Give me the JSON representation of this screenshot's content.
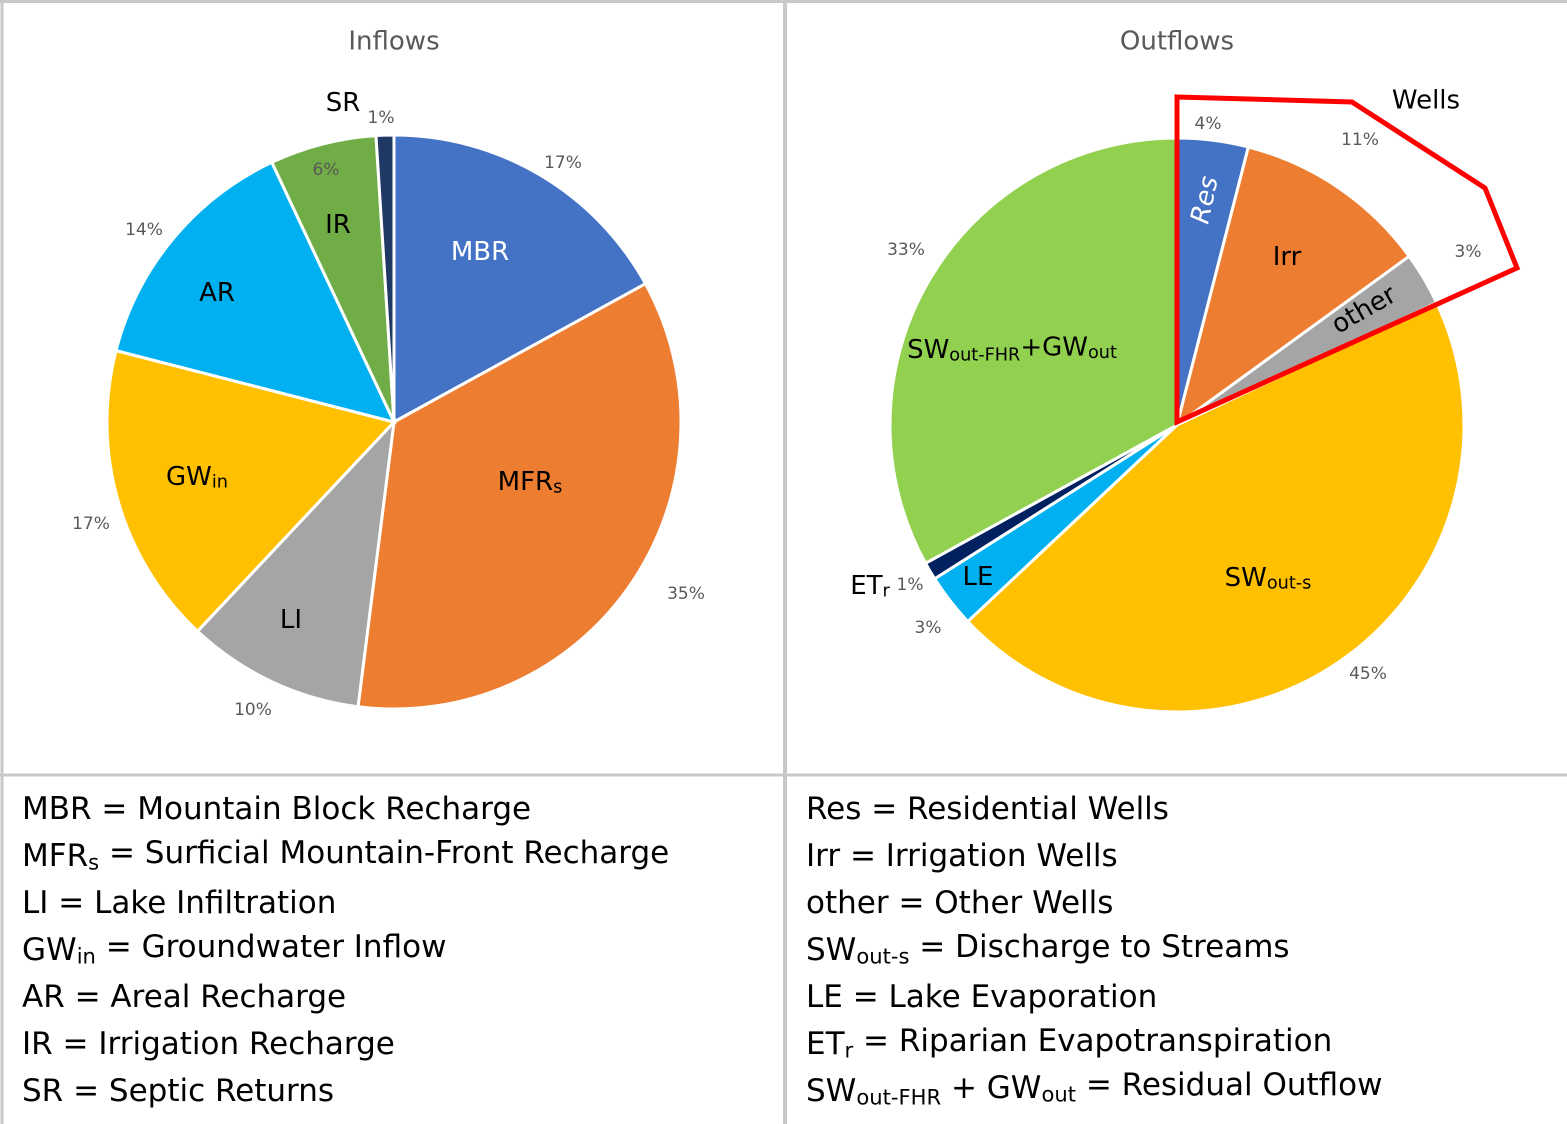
{
  "chart_data": [
    {
      "type": "pie",
      "title": "Inflows",
      "categories": [
        [
          "MBR"
        ],
        [
          "MFR",
          "s"
        ],
        [
          "LI"
        ],
        [
          "GW",
          "in"
        ],
        [
          "AR"
        ],
        [
          "IR"
        ],
        [
          "SR"
        ]
      ],
      "values": [
        17,
        35,
        10,
        17,
        14,
        6,
        1
      ],
      "value_labels": [
        "17%",
        "35%",
        "10%",
        "17%",
        "14%",
        "6%",
        "1%"
      ],
      "colors": [
        "#4472c4",
        "#ed7d31",
        "#a5a5a5",
        "#ffc000",
        "#00b0f0",
        "#70ad47",
        "#203864"
      ]
    },
    {
      "type": "pie",
      "title": "Outflows",
      "categories": [
        [
          "Res"
        ],
        [
          "Irr"
        ],
        [
          "other"
        ],
        [
          "SW",
          "out-s"
        ],
        [
          "LE"
        ],
        [
          "ET",
          "r"
        ],
        [
          "SW",
          "out-FHR",
          "+GW",
          "out"
        ]
      ],
      "values": [
        4,
        11,
        3,
        45,
        3,
        1,
        33
      ],
      "value_labels": [
        "4%",
        "11%",
        "3%",
        "45%",
        "3%",
        "1%",
        "33%"
      ],
      "colors": [
        "#4472c4",
        "#ed7d31",
        "#a5a5a5",
        "#ffc000",
        "#00b0f0",
        "#002060",
        "#92d050"
      ],
      "annotation": "Wells"
    }
  ],
  "legend_notes": [
    [
      [
        "MBR = Mountain Block Recharge"
      ],
      [
        "MFR",
        "s",
        " = Surficial Mountain-Front Recharge"
      ],
      [
        "LI = Lake Infiltration"
      ],
      [
        "GW",
        "in",
        " = Groundwater Inflow"
      ],
      [
        "AR = Areal Recharge"
      ],
      [
        "IR = Irrigation Recharge"
      ],
      [
        "SR = Septic Returns"
      ]
    ],
    [
      [
        "Res = Residential Wells"
      ],
      [
        "Irr = Irrigation Wells"
      ],
      [
        "other = Other Wells"
      ],
      [
        "SW",
        "out-s",
        " = Discharge to Streams"
      ],
      [
        "LE = Lake Evaporation"
      ],
      [
        "ET",
        "r",
        " = Riparian Evapotranspiration"
      ],
      [
        "SW",
        "out-FHR",
        " + GW",
        "out",
        " = Residual Outflow"
      ]
    ]
  ]
}
